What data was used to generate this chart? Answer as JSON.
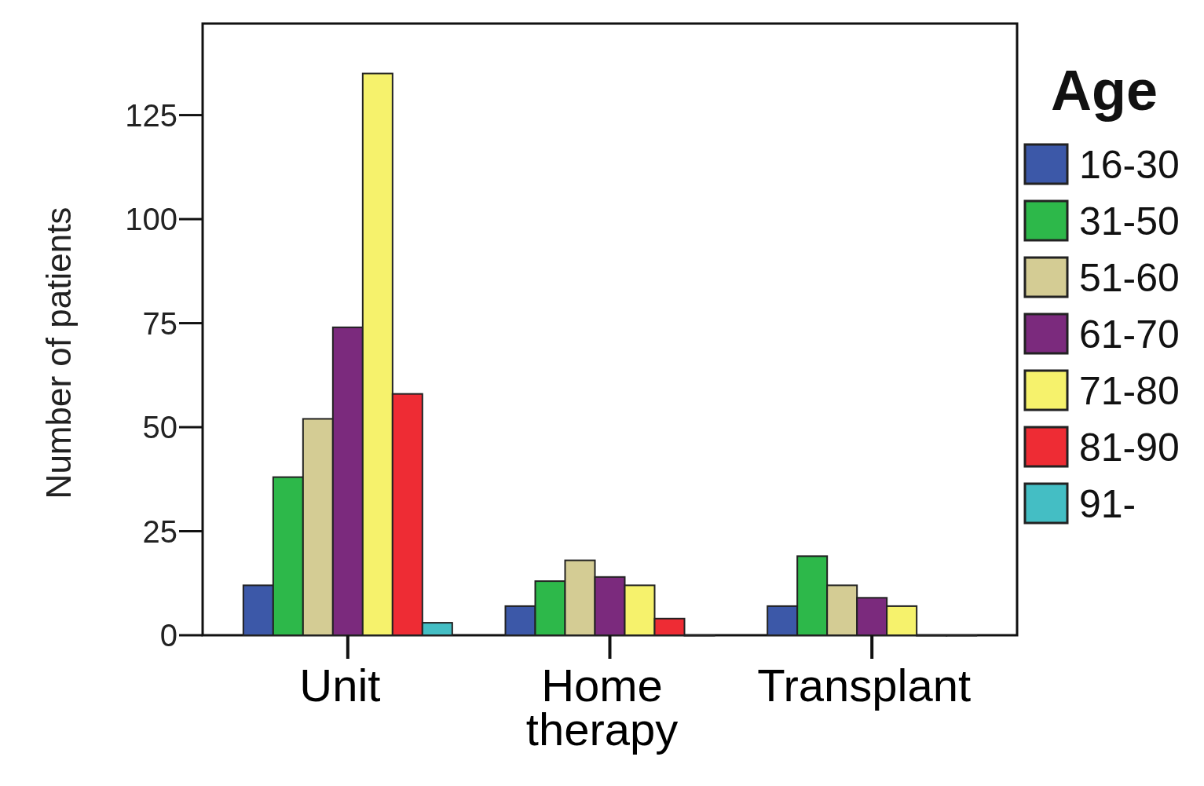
{
  "chart_data": {
    "type": "bar",
    "ylabel": "Number of patients",
    "legend_title": "Age",
    "legend": "right",
    "grid": false,
    "categories": [
      "Unit",
      "Home therapy",
      "Transplant"
    ],
    "ylim": [
      0,
      147
    ],
    "yticks": [
      0,
      25,
      50,
      75,
      100,
      125
    ],
    "series": [
      {
        "name": "16-30",
        "color": "#3c58a8",
        "values": [
          12,
          7,
          7
        ]
      },
      {
        "name": "31-50",
        "color": "#2db84a",
        "values": [
          38,
          13,
          19
        ]
      },
      {
        "name": "51-60",
        "color": "#d4cc94",
        "values": [
          52,
          18,
          12
        ]
      },
      {
        "name": "61-70",
        "color": "#7b2a7d",
        "values": [
          74,
          14,
          9
        ]
      },
      {
        "name": "71-80",
        "color": "#f6f26c",
        "values": [
          135,
          12,
          7
        ]
      },
      {
        "name": "81-90",
        "color": "#ee2c34",
        "values": [
          58,
          4,
          0
        ]
      },
      {
        "name": "91-",
        "color": "#44bec4",
        "values": [
          3,
          0,
          0
        ]
      }
    ]
  }
}
